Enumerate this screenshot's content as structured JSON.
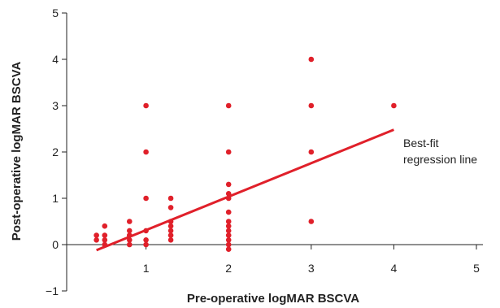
{
  "chart_data": {
    "type": "scatter",
    "xlabel": "Pre-operative logMAR BSCVA",
    "ylabel": "Post-operative logMAR BSCVA",
    "xlim": [
      0,
      5
    ],
    "ylim": [
      -1,
      5
    ],
    "x_ticks": [
      "1",
      "2",
      "3",
      "4",
      "5"
    ],
    "y_ticks": [
      "−1",
      "0",
      "1",
      "2",
      "3",
      "4",
      "5"
    ],
    "point_color": "#e0202a",
    "line_color": "#e0202a",
    "points": [
      {
        "x": 0.4,
        "y": 0.1
      },
      {
        "x": 0.4,
        "y": 0.2
      },
      {
        "x": 0.5,
        "y": 0.0
      },
      {
        "x": 0.5,
        "y": 0.1
      },
      {
        "x": 0.5,
        "y": 0.2
      },
      {
        "x": 0.5,
        "y": 0.4
      },
      {
        "x": 0.8,
        "y": 0.0
      },
      {
        "x": 0.8,
        "y": 0.1
      },
      {
        "x": 0.8,
        "y": 0.2
      },
      {
        "x": 0.8,
        "y": 0.3
      },
      {
        "x": 0.8,
        "y": 0.5
      },
      {
        "x": 1.0,
        "y": 0.0
      },
      {
        "x": 1.0,
        "y": 0.1
      },
      {
        "x": 1.0,
        "y": 0.3
      },
      {
        "x": 1.0,
        "y": 1.0
      },
      {
        "x": 1.0,
        "y": 2.0
      },
      {
        "x": 1.0,
        "y": 3.0
      },
      {
        "x": 1.3,
        "y": 0.1
      },
      {
        "x": 1.3,
        "y": 0.2
      },
      {
        "x": 1.3,
        "y": 0.3
      },
      {
        "x": 1.3,
        "y": 0.4
      },
      {
        "x": 1.3,
        "y": 0.5
      },
      {
        "x": 1.3,
        "y": 0.8
      },
      {
        "x": 1.3,
        "y": 1.0
      },
      {
        "x": 2.0,
        "y": -0.1
      },
      {
        "x": 2.0,
        "y": 0.0
      },
      {
        "x": 2.0,
        "y": 0.1
      },
      {
        "x": 2.0,
        "y": 0.2
      },
      {
        "x": 2.0,
        "y": 0.3
      },
      {
        "x": 2.0,
        "y": 0.4
      },
      {
        "x": 2.0,
        "y": 0.5
      },
      {
        "x": 2.0,
        "y": 0.7
      },
      {
        "x": 2.0,
        "y": 1.0
      },
      {
        "x": 2.0,
        "y": 1.1
      },
      {
        "x": 2.0,
        "y": 1.3
      },
      {
        "x": 2.0,
        "y": 2.0
      },
      {
        "x": 2.0,
        "y": 3.0
      },
      {
        "x": 3.0,
        "y": 0.5
      },
      {
        "x": 3.0,
        "y": 2.0
      },
      {
        "x": 3.0,
        "y": 3.0
      },
      {
        "x": 3.0,
        "y": 4.0
      },
      {
        "x": 4.0,
        "y": 3.0
      }
    ],
    "regression_line": {
      "x": [
        0.4,
        4.0
      ],
      "y": [
        -0.12,
        2.48
      ]
    },
    "annotation": [
      "Best-fit",
      "regression line"
    ]
  }
}
